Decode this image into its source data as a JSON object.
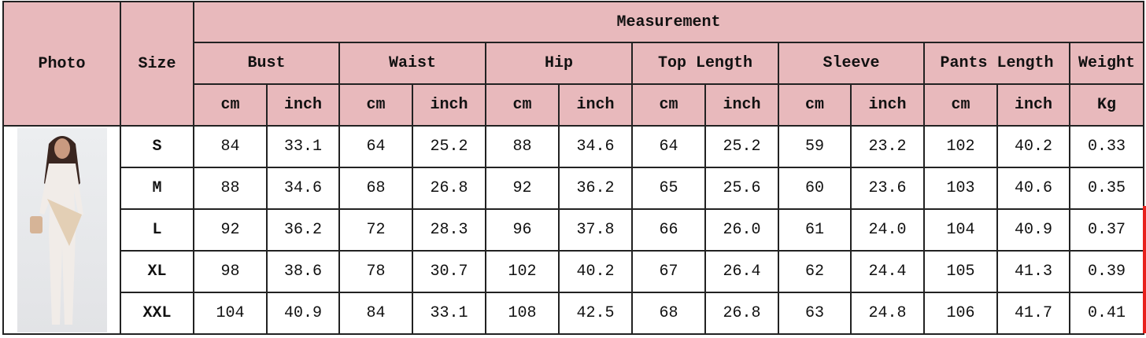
{
  "header": {
    "photo": "Photo",
    "size": "Size",
    "measurement": "Measurement",
    "groups": [
      "Bust",
      "Waist",
      "Hip",
      "Top Length",
      "Sleeve",
      "Pants Length",
      "Weight"
    ],
    "units": [
      "cm",
      "inch",
      "cm",
      "inch",
      "cm",
      "inch",
      "cm",
      "inch",
      "cm",
      "inch",
      "cm",
      "inch",
      "Kg"
    ]
  },
  "rows": [
    {
      "size": "S",
      "values": [
        "84",
        "33.1",
        "64",
        "25.2",
        "88",
        "34.6",
        "64",
        "25.2",
        "59",
        "23.2",
        "102",
        "40.2",
        "0.33"
      ]
    },
    {
      "size": "M",
      "values": [
        "88",
        "34.6",
        "68",
        "26.8",
        "92",
        "36.2",
        "65",
        "25.6",
        "60",
        "23.6",
        "103",
        "40.6",
        "0.35"
      ]
    },
    {
      "size": "L",
      "values": [
        "92",
        "36.2",
        "72",
        "28.3",
        "96",
        "37.8",
        "66",
        "26.0",
        "61",
        "24.0",
        "104",
        "40.9",
        "0.37"
      ]
    },
    {
      "size": "XL",
      "values": [
        "98",
        "38.6",
        "78",
        "30.7",
        "102",
        "40.2",
        "67",
        "26.4",
        "62",
        "24.4",
        "105",
        "41.3",
        "0.39"
      ]
    },
    {
      "size": "XXL",
      "values": [
        "104",
        "40.9",
        "84",
        "33.1",
        "108",
        "42.5",
        "68",
        "26.8",
        "63",
        "24.8",
        "106",
        "41.7",
        "0.41"
      ]
    }
  ],
  "colors": {
    "header_bg": "#e8b9bc",
    "border": "#222222",
    "accent_bar": "#e8211c"
  }
}
